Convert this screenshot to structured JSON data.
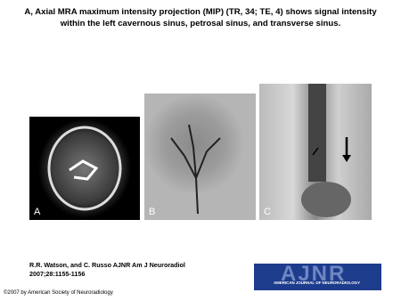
{
  "header": {
    "title": "A, Axial MRA maximum intensity projection (MIP) (TR, 34; TE, 4) shows signal intensity within the left cavernous sinus, petrosal sinus, and transverse sinus."
  },
  "figure": {
    "panels": [
      {
        "label": "A"
      },
      {
        "label": "B"
      },
      {
        "label": "C"
      }
    ]
  },
  "citation": {
    "authors": "R.R. Watson, and C. Russo AJNR Am J Neuroradiol",
    "reference": "2007;28:1155-1156"
  },
  "logo": {
    "name": "AJNR",
    "subtitle": "AMERICAN JOURNAL OF NEURORADIOLOGY"
  },
  "footer": {
    "copyright": "©2007 by American Society of Neuroradiology"
  }
}
